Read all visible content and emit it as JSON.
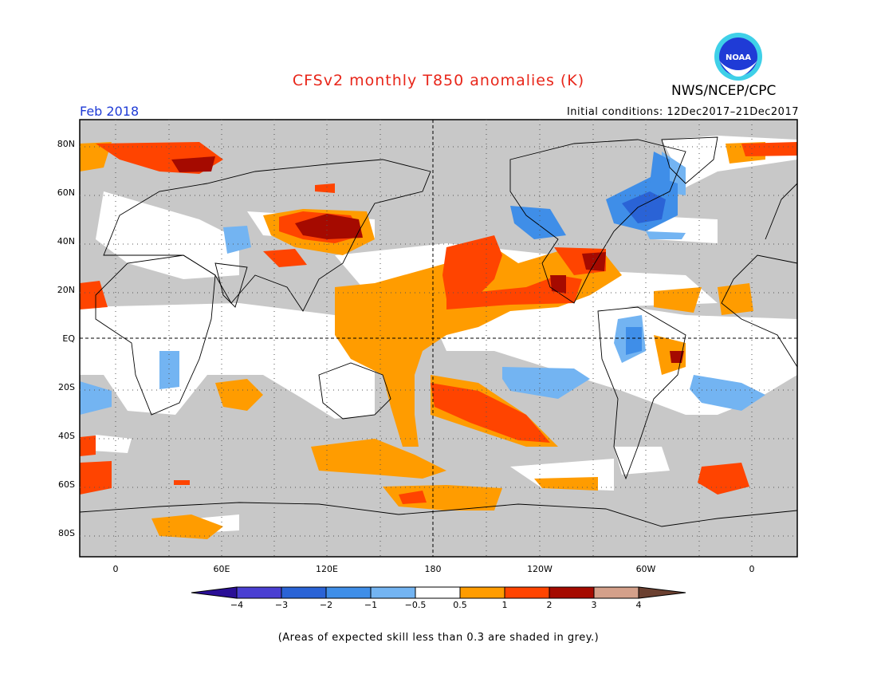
{
  "header": {
    "title": "CFSv2 monthly T850 anomalies (K)",
    "period": "Feb 2018",
    "agency": "NWS/NCEP/CPC",
    "logo_text": "NOAA",
    "initial_conditions": "Initial conditions: 12Dec2017–21Dec2017"
  },
  "map": {
    "lat_labels": [
      "80N",
      "60N",
      "40N",
      "20N",
      "EQ",
      "20S",
      "40S",
      "60S",
      "80S"
    ],
    "lon_labels": [
      "0",
      "60E",
      "120E",
      "180",
      "120W",
      "60W",
      "0"
    ],
    "colors": {
      "grey": "#c8c8c8",
      "land": "#000000"
    }
  },
  "legend": {
    "tick_labels": [
      "−4",
      "−3",
      "−2",
      "−1",
      "−0.5",
      "0.5",
      "1",
      "2",
      "3",
      "4"
    ],
    "colors": [
      "#2a0f96",
      "#4a3fd2",
      "#2a63d6",
      "#3f8ee8",
      "#73b4f2",
      "#ffffff",
      "#ff9c00",
      "#ff4400",
      "#a50a00",
      "#d4a08a",
      "#6b4030"
    ]
  },
  "footer": {
    "note": "(Areas of expected skill less than 0.3 are shaded in grey.)"
  }
}
